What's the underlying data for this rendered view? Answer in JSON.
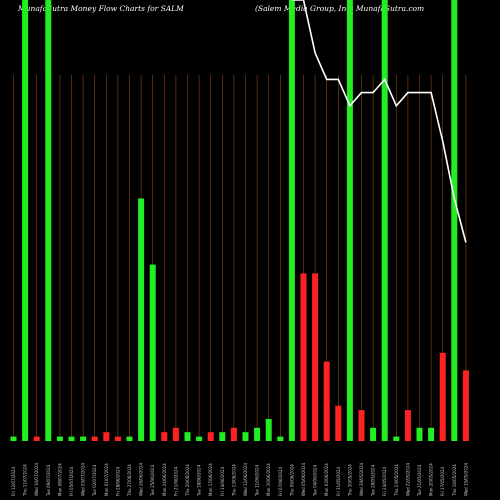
{
  "titles": {
    "left": "MunafaSutra  Money Flow  Charts for SALM",
    "right": "(Salem Media  Group,  Inc)  MunafaSutra.com"
  },
  "chart_data": {
    "type": "bar",
    "title": "MunafaSutra Money Flow Charts for SALM",
    "categories": [
      "Fri 12 Jul",
      "Thu 11 Jul",
      "Wed 10 Jul",
      "Tue 09 Jul",
      "Mon 08 Jul",
      "Fri 05 Jul",
      "Wed 03 Jul",
      "Tue 02 Jul",
      "Mon 01 Jul",
      "Fri 28 Jun",
      "Thu 27 Jun",
      "Wed 26 Jun",
      "Tue 25 Jun",
      "Mon 24 Jun",
      "Fri 21 Jun",
      "Thu 20 Jun",
      "Tue 18 Jun",
      "Mon 17 Jun",
      "Fri 14 Jun",
      "Thu 13 Jun",
      "Wed 12 Jun",
      "Tue 11 Jun",
      "Mon 10 Jun",
      "Fri 07 Jun",
      "Thu 06 Jun",
      "Wed 05 Jun",
      "Tue 04 Jun",
      "Mon 03 Jun",
      "Fri 31 May",
      "Thu 30 May",
      "Wed 29 May",
      "Tue 28 May",
      "Fri 24 May",
      "Thu 23 May",
      "Wed 22 May",
      "Tue 21 May",
      "Mon 20 May",
      "Fri 17 May",
      "Thu 16 May",
      "Wed 15 May"
    ],
    "tick_labels": [
      "Fri 12/07/2024",
      "Thu 11/07/2024",
      "Wed 10/07/2024",
      "Tue 09/07/2024",
      "Mon 08/07/2024",
      "Fri 05/07/2024",
      "Wed 03/07/2024",
      "Tue 02/07/2024",
      "Mon 01/07/2024",
      "Fri 28/06/2024",
      "Thu 27/06/2024",
      "Wed 26/06/2024",
      "Tue 25/06/2024",
      "Mon 24/06/2024",
      "Fri 21/06/2024",
      "Thu 20/06/2024",
      "Tue 18/06/2024",
      "Mon 17/06/2024",
      "Fri 14/06/2024",
      "Thu 13/06/2024",
      "Wed 12/06/2024",
      "Tue 11/06/2024",
      "Mon 10/06/2024",
      "Fri 07/06/2024",
      "Thu 06/06/2024",
      "Wed 05/06/2024",
      "Tue 04/06/2024",
      "Mon 03/06/2024",
      "Fri 31/05/2024",
      "Thu 30/05/2024",
      "Wed 29/05/2024",
      "Tue 28/05/2024",
      "Fri 24/05/2024",
      "Thu 23/05/2024",
      "Wed 22/05/2024",
      "Tue 21/05/2024",
      "Mon 20/05/2024",
      "Fri 17/05/2024",
      "Thu 16/05/2024",
      "Wed 15/05/2024"
    ],
    "series": [
      {
        "values": [
          1,
          100,
          1,
          100,
          1,
          1,
          1,
          1,
          2,
          1,
          1,
          55,
          40,
          2,
          3,
          2,
          1,
          2,
          2,
          3,
          2,
          3,
          5,
          1,
          100,
          38,
          38,
          18,
          8,
          100,
          7,
          3,
          100,
          1,
          7,
          3,
          3,
          20,
          100,
          16
        ],
        "directions": [
          "up",
          "up",
          "down",
          "up",
          "up",
          "up",
          "up",
          "down",
          "down",
          "down",
          "up",
          "up",
          "up",
          "down",
          "down",
          "up",
          "up",
          "down",
          "up",
          "down",
          "up",
          "up",
          "up",
          "up",
          "up",
          "down",
          "down",
          "down",
          "down",
          "up",
          "down",
          "up",
          "up",
          "up",
          "down",
          "up",
          "up",
          "down",
          "up",
          "down"
        ]
      }
    ],
    "price_line": [
      null,
      null,
      null,
      null,
      null,
      null,
      null,
      null,
      null,
      null,
      null,
      null,
      null,
      null,
      null,
      null,
      null,
      null,
      null,
      null,
      null,
      null,
      null,
      null,
      100,
      100,
      88,
      82,
      82,
      76,
      79,
      79,
      82,
      76,
      79,
      79,
      79,
      68,
      55,
      45
    ],
    "ylim": [
      0,
      100
    ],
    "grid": true,
    "colors": {
      "up": "#22ee22",
      "down": "#ff2222",
      "grid": "#8B4513",
      "price": "#ffffff",
      "background": "#000000"
    }
  }
}
